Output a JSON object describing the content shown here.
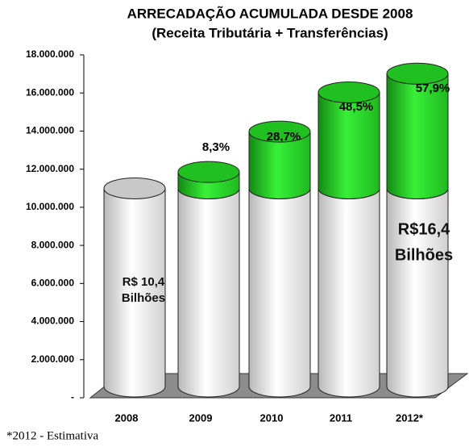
{
  "chart_data": {
    "type": "stacked-cylinder",
    "title": "ARRECADAÇÃO ACUMULADA DESDE 2008",
    "subtitle": "(Receita Tributária + Transferências)",
    "categories": [
      "2008",
      "2009",
      "2010",
      "2011",
      "2012*"
    ],
    "series": [
      {
        "color": "#ffffff",
        "values": [
          10400000,
          10400000,
          10400000,
          10400000,
          10400000
        ]
      },
      {
        "color": "#22cc22",
        "values": [
          0,
          860000,
          2980000,
          5040000,
          6020000
        ]
      }
    ],
    "ylim": [
      0,
      18000000
    ],
    "yticks": [
      {
        "value": 0,
        "label": "-"
      },
      {
        "value": 2000000,
        "label": "2.000.000"
      },
      {
        "value": 4000000,
        "label": "4.000.000"
      },
      {
        "value": 6000000,
        "label": "6.000.000"
      },
      {
        "value": 8000000,
        "label": "8.000.000"
      },
      {
        "value": 10000000,
        "label": "10.000.000"
      },
      {
        "value": 12000000,
        "label": "12.000.000"
      },
      {
        "value": 14000000,
        "label": "14.000.000"
      },
      {
        "value": 16000000,
        "label": "16.000.000"
      },
      {
        "value": 18000000,
        "label": "18.000.000"
      }
    ],
    "annotations": [
      "8,3%",
      "28,7%",
      "48,5%",
      "57,9%"
    ],
    "text_blocks": [
      [
        "R$ 10,4",
        "Bilhões"
      ],
      [
        "R$16,4",
        "Bilhões"
      ]
    ],
    "footnote": "*2012 - Estimativa"
  }
}
